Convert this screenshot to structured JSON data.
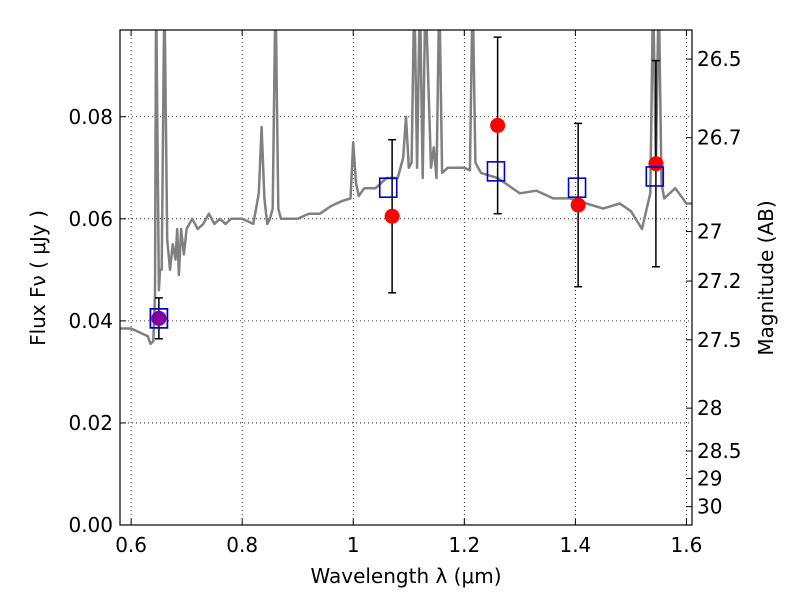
{
  "chart_data": {
    "type": "scatter",
    "xlabel": "Wavelength  λ (μm)",
    "ylabel": "Flux  Fν  ( μJy )",
    "ylabel_right": "Magnitude (AB)",
    "xlim": [
      0.58,
      1.61
    ],
    "ylim": [
      0.0,
      0.097
    ],
    "grid": true,
    "x_ticks": [
      {
        "value": 0.6,
        "label": "0.6"
      },
      {
        "value": 0.8,
        "label": "0.8"
      },
      {
        "value": 1.0,
        "label": "1"
      },
      {
        "value": 1.2,
        "label": "1.2"
      },
      {
        "value": 1.4,
        "label": "1.4"
      },
      {
        "value": 1.6,
        "label": "1.6"
      }
    ],
    "y_ticks": [
      {
        "value": 0.0,
        "label": "0.00"
      },
      {
        "value": 0.02,
        "label": "0.02"
      },
      {
        "value": 0.04,
        "label": "0.04"
      },
      {
        "value": 0.06,
        "label": "0.06"
      },
      {
        "value": 0.08,
        "label": "0.08"
      }
    ],
    "mag_ticks": [
      {
        "flux": 0.0913,
        "label": "26.5"
      },
      {
        "flux": 0.0759,
        "label": "26.7"
      },
      {
        "flux": 0.0575,
        "label": "27"
      },
      {
        "flux": 0.0478,
        "label": "27.2"
      },
      {
        "flux": 0.0363,
        "label": "27.5"
      },
      {
        "flux": 0.0229,
        "label": "28"
      },
      {
        "flux": 0.0145,
        "label": "28.5"
      },
      {
        "flux": 0.0091,
        "label": "29"
      },
      {
        "flux": 0.0036,
        "label": "30"
      }
    ],
    "observed": {
      "color": "#ff0000",
      "points": [
        {
          "x": 0.65,
          "y": 0.0405,
          "err": 0.004
        },
        {
          "x": 1.07,
          "y": 0.0605,
          "err": 0.015
        },
        {
          "x": 1.26,
          "y": 0.0783,
          "err": 0.0173
        },
        {
          "x": 1.405,
          "y": 0.0627,
          "err": 0.016
        },
        {
          "x": 1.545,
          "y": 0.0708,
          "err": 0.0202
        }
      ]
    },
    "model_photometry": {
      "color": "#0000cc",
      "points": [
        {
          "x": 0.65,
          "y": 0.0405
        },
        {
          "x": 1.063,
          "y": 0.0661
        },
        {
          "x": 1.257,
          "y": 0.0693
        },
        {
          "x": 1.403,
          "y": 0.0661
        },
        {
          "x": 1.543,
          "y": 0.0683
        }
      ]
    },
    "sed_model": {
      "color": "#808080",
      "x": [
        0.58,
        0.6,
        0.62,
        0.63,
        0.635,
        0.64,
        0.643,
        0.645,
        0.65,
        0.652,
        0.655,
        0.66,
        0.665,
        0.67,
        0.675,
        0.68,
        0.683,
        0.686,
        0.69,
        0.695,
        0.7,
        0.71,
        0.72,
        0.73,
        0.74,
        0.75,
        0.76,
        0.77,
        0.78,
        0.8,
        0.82,
        0.83,
        0.835,
        0.84,
        0.845,
        0.85,
        0.855,
        0.86,
        0.865,
        0.87,
        0.88,
        0.9,
        0.92,
        0.94,
        0.96,
        0.98,
        0.995,
        1.0,
        1.005,
        1.01,
        1.02,
        1.04,
        1.06,
        1.08,
        1.09,
        1.095,
        1.1,
        1.105,
        1.11,
        1.115,
        1.12,
        1.125,
        1.13,
        1.14,
        1.145,
        1.15,
        1.155,
        1.16,
        1.17,
        1.18,
        1.2,
        1.21,
        1.215,
        1.22,
        1.23,
        1.26,
        1.28,
        1.3,
        1.33,
        1.36,
        1.39,
        1.42,
        1.45,
        1.48,
        1.5,
        1.52,
        1.535,
        1.54,
        1.545,
        1.55,
        1.555,
        1.56,
        1.58,
        1.6,
        1.61
      ],
      "y": [
        0.0385,
        0.0385,
        0.0375,
        0.037,
        0.0355,
        0.036,
        0.045,
        0.105,
        0.046,
        0.05,
        0.05,
        0.105,
        0.056,
        0.05,
        0.055,
        0.052,
        0.058,
        0.049,
        0.058,
        0.053,
        0.058,
        0.06,
        0.058,
        0.059,
        0.061,
        0.059,
        0.06,
        0.059,
        0.06,
        0.06,
        0.059,
        0.065,
        0.078,
        0.064,
        0.059,
        0.06,
        0.062,
        0.105,
        0.062,
        0.06,
        0.06,
        0.06,
        0.061,
        0.061,
        0.0625,
        0.0635,
        0.064,
        0.075,
        0.067,
        0.0645,
        0.066,
        0.066,
        0.068,
        0.068,
        0.072,
        0.08,
        0.07,
        0.071,
        0.105,
        0.07,
        0.105,
        0.068,
        0.105,
        0.07,
        0.074,
        0.068,
        0.105,
        0.069,
        0.07,
        0.07,
        0.07,
        0.0695,
        0.105,
        0.071,
        0.069,
        0.068,
        0.0665,
        0.065,
        0.0655,
        0.064,
        0.064,
        0.063,
        0.062,
        0.063,
        0.0615,
        0.058,
        0.065,
        0.105,
        0.07,
        0.105,
        0.067,
        0.064,
        0.066,
        0.063,
        0.063
      ]
    }
  }
}
